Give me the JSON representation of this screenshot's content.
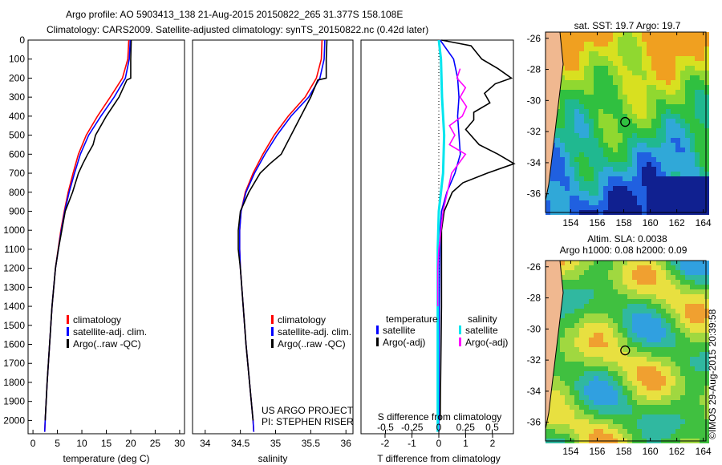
{
  "title_line1": "Argo profile: AO 5903413_138 21-Aug-2015 20150822_265 31.377S 158.108E",
  "title_line2": "Climatology: CARS2009. Satellite-adjusted climatology: synTS_20150822.nc (0.42d later)",
  "credit": "©IMOS 29-Aug-2015 20:39:58",
  "project_line1": "US ARGO PROJECT",
  "project_line2": "PI: STEPHEN RISER",
  "colors": {
    "climatology": "#ff0000",
    "satellite": "#0000ff",
    "argo": "#000000",
    "sal_sat": "#00e5ee",
    "sal_argo": "#ff00ff"
  },
  "chart_data": [
    {
      "type": "line",
      "id": "temperature",
      "xlabel": "temperature (deg C)",
      "xlim": [
        -1,
        31
      ],
      "ylim": [
        2070,
        0
      ],
      "xticks": [
        "0",
        "5",
        "10",
        "15",
        "20",
        "25",
        "30"
      ],
      "xtick_values": [
        0,
        5,
        10,
        15,
        20,
        25,
        30
      ],
      "yticks": [
        "0",
        "100",
        "200",
        "300",
        "400",
        "500",
        "600",
        "700",
        "800",
        "900",
        "1000",
        "1100",
        "1200",
        "1300",
        "1400",
        "1500",
        "1600",
        "1700",
        "1800",
        "1900",
        "2000"
      ],
      "legend": [
        "climatology",
        "satellite-adj. clim.",
        "Argo(..raw -QC)"
      ],
      "series": [
        {
          "name": "climatology",
          "color": "#ff0000",
          "depth": [
            0,
            100,
            200,
            300,
            400,
            500,
            600,
            700,
            800,
            900,
            1000,
            1200,
            1400,
            1600,
            1800,
            2000,
            2060
          ],
          "values": [
            19.6,
            19.4,
            18.3,
            15.8,
            13.2,
            10.9,
            9.3,
            8.2,
            7.2,
            6.4,
            5.7,
            4.6,
            3.9,
            3.4,
            2.9,
            2.5,
            2.4
          ]
        },
        {
          "name": "satellite-adj. clim.",
          "color": "#0000ff",
          "depth": [
            0,
            100,
            200,
            300,
            400,
            500,
            600,
            700,
            800,
            900,
            1000,
            1200,
            1400,
            1600,
            1800,
            2000,
            2060
          ],
          "values": [
            19.9,
            19.7,
            18.9,
            16.6,
            13.9,
            11.4,
            9.7,
            8.5,
            7.4,
            6.5,
            5.8,
            4.6,
            3.9,
            3.4,
            2.9,
            2.5,
            2.4
          ]
        },
        {
          "name": "Argo(..raw -QC)",
          "color": "#000000",
          "depth": [
            0,
            100,
            200,
            210,
            300,
            400,
            500,
            550,
            600,
            650,
            700,
            800,
            900,
            1000,
            1100,
            1200,
            1400,
            1600,
            1800,
            2000
          ],
          "values": [
            20.1,
            20.0,
            20.0,
            19.2,
            17.6,
            15.0,
            12.8,
            12.3,
            11.2,
            10.2,
            9.3,
            8.1,
            6.6,
            5.9,
            5.2,
            4.6,
            3.9,
            3.4,
            2.9,
            2.5
          ]
        }
      ]
    },
    {
      "type": "line",
      "id": "salinity",
      "xlabel": "salinity",
      "xlim": [
        33.82,
        36.1
      ],
      "ylim": [
        2070,
        0
      ],
      "xticks": [
        "34",
        "34.5",
        "35",
        "35.5",
        "36"
      ],
      "xtick_values": [
        34,
        34.5,
        35,
        35.5,
        36
      ],
      "legend": [
        "climatology",
        "satellite-adj. clim.",
        "Argo(..raw -QC)"
      ],
      "series": [
        {
          "name": "climatology",
          "color": "#ff0000",
          "depth": [
            0,
            100,
            200,
            300,
            400,
            500,
            600,
            700,
            800,
            900,
            1000,
            1100,
            1200,
            1400,
            1600,
            1800,
            2000,
            2060
          ],
          "values": [
            35.66,
            35.65,
            35.58,
            35.42,
            35.18,
            34.98,
            34.82,
            34.68,
            34.57,
            34.51,
            34.49,
            34.49,
            34.5,
            34.54,
            34.58,
            34.63,
            34.68,
            34.69
          ]
        },
        {
          "name": "satellite-adj. clim.",
          "color": "#0000ff",
          "depth": [
            0,
            100,
            200,
            300,
            400,
            500,
            600,
            700,
            800,
            900,
            1000,
            1100,
            1200,
            1400,
            1600,
            1800,
            2000,
            2060
          ],
          "values": [
            35.7,
            35.69,
            35.63,
            35.47,
            35.22,
            35.02,
            34.85,
            34.7,
            34.58,
            34.51,
            34.49,
            34.49,
            34.5,
            34.54,
            34.58,
            34.63,
            34.68,
            34.69
          ]
        },
        {
          "name": "Argo(..raw -QC)",
          "color": "#000000",
          "depth": [
            0,
            100,
            200,
            210,
            300,
            400,
            500,
            600,
            650,
            700,
            800,
            900,
            1000,
            1100,
            1200,
            1400,
            1600,
            1800,
            2000
          ],
          "values": [
            35.73,
            35.72,
            35.72,
            35.6,
            35.5,
            35.36,
            35.22,
            35.08,
            34.92,
            34.78,
            34.62,
            34.5,
            34.47,
            34.47,
            34.5,
            34.54,
            34.58,
            34.63,
            34.68
          ]
        }
      ]
    },
    {
      "type": "line",
      "id": "difference",
      "xlabel": "T difference from climatology",
      "x2label": "S difference from climatology",
      "xlim": [
        -2.95,
        2.95
      ],
      "ylim": [
        2070,
        0
      ],
      "xticks": [
        "-2",
        "-1",
        "0",
        "1",
        "2"
      ],
      "xtick_values": [
        -2,
        -1,
        0,
        1,
        2
      ],
      "x2ticks": [
        "-0.5",
        "-0.25",
        "0",
        "0.25",
        "0.5"
      ],
      "x2tick_values": [
        -0.5,
        -0.25,
        0,
        0.25,
        0.5
      ],
      "legend_t_title": "temperature",
      "legend_s_title": "salinity",
      "legend_t": [
        "satellite",
        "Argo(-adj)"
      ],
      "legend_s": [
        "satellite",
        "Argo(-adj)"
      ],
      "series": [
        {
          "name": "T satellite",
          "color": "#0000ff",
          "axis": "T",
          "depth": [
            0,
            50,
            100,
            200,
            300,
            400,
            500,
            600,
            700,
            800,
            900,
            1000,
            1400,
            2060
          ],
          "values": [
            0.05,
            0.3,
            0.55,
            0.7,
            0.75,
            0.7,
            0.75,
            0.8,
            0.6,
            0.3,
            0.1,
            0.05,
            0.02,
            0.0
          ]
        },
        {
          "name": "T Argo(-adj)",
          "color": "#000000",
          "axis": "T",
          "depth": [
            0,
            30,
            100,
            150,
            200,
            230,
            280,
            330,
            380,
            420,
            470,
            550,
            600,
            650,
            700,
            750,
            800,
            850,
            900,
            1000,
            1400,
            2000
          ],
          "values": [
            0.1,
            1.2,
            1.6,
            2.2,
            2.7,
            2.1,
            1.7,
            1.9,
            1.3,
            1.3,
            1.0,
            1.5,
            2.2,
            2.8,
            1.8,
            0.9,
            0.5,
            0.35,
            0.2,
            0.1,
            0.1,
            0.05
          ]
        },
        {
          "name": "S satellite",
          "color": "#00e5ee",
          "axis": "S",
          "depth": [
            0,
            100,
            300,
            500,
            700,
            900,
            1100,
            2060
          ],
          "values": [
            0.0,
            0.02,
            0.03,
            0.05,
            0.04,
            0.0,
            -0.01,
            -0.01
          ]
        },
        {
          "name": "S Argo(-adj)",
          "color": "#ff00ff",
          "axis": "S",
          "depth": [
            150,
            200,
            250,
            300,
            350,
            400,
            450,
            500,
            550,
            600,
            700,
            800,
            900,
            1000,
            1100,
            1200,
            1400
          ],
          "values": [
            0.2,
            0.17,
            0.25,
            0.2,
            0.26,
            0.22,
            0.1,
            0.15,
            0.1,
            0.25,
            0.12,
            0.08,
            0.04,
            0.02,
            0.0,
            -0.01,
            -0.01
          ]
        }
      ]
    },
    {
      "type": "heatmap",
      "id": "sst_map",
      "title": "sat. SST: 19.7 Argo: 19.7",
      "xticks": [
        "154",
        "156",
        "158",
        "160",
        "162",
        "164"
      ],
      "yticks": [
        "-26",
        "-28",
        "-30",
        "-32",
        "-34",
        "-36"
      ],
      "xlim": [
        152.1,
        164.2
      ],
      "ylim": [
        -37.2,
        -25.6
      ],
      "marker": [
        158.108,
        -31.377
      ]
    },
    {
      "type": "heatmap",
      "id": "sla_map",
      "title": "Altim. SLA: 0.0038",
      "subtitle": "Argo h1000: 0.08 h2000: 0.09",
      "xticks": [
        "154",
        "156",
        "158",
        "160",
        "162",
        "164"
      ],
      "yticks": [
        "-26",
        "-28",
        "-30",
        "-32",
        "-34",
        "-36"
      ],
      "xlim": [
        152.1,
        164.2
      ],
      "ylim": [
        -37.2,
        -25.6
      ],
      "marker": [
        158.108,
        -31.377
      ]
    }
  ]
}
